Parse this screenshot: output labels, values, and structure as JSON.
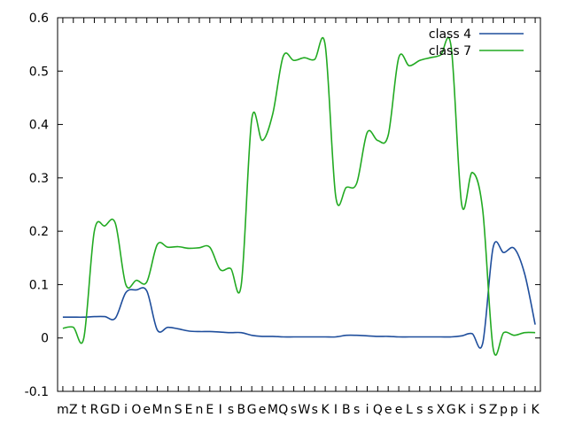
{
  "chart_data": {
    "type": "line",
    "title": "",
    "xlabel": "",
    "ylabel": "",
    "ylim": [
      -0.1,
      0.6
    ],
    "yticks": [
      "-0.1",
      "0",
      "0.1",
      "0.2",
      "0.3",
      "0.4",
      "0.5",
      "0.6"
    ],
    "yticks_values": [
      -0.1,
      0,
      0.1,
      0.2,
      0.3,
      0.4,
      0.5,
      0.6
    ],
    "grid": false,
    "legend_position": "top-right",
    "categories": [
      "m",
      "Z",
      "t",
      "R",
      "G",
      "D",
      "i",
      "O",
      "e",
      "M",
      "n",
      "S",
      "E",
      "n",
      "E",
      "I",
      "s",
      "B",
      "G",
      "e",
      "M",
      "Q",
      "s",
      "W",
      "s",
      "K",
      "I",
      "B",
      "s",
      "i",
      "Q",
      "e",
      "e",
      "L",
      "s",
      "s",
      "X",
      "G",
      "K",
      "i",
      "S",
      "Z",
      "p",
      "p",
      "i",
      "K"
    ],
    "series": [
      {
        "name": "class 4",
        "color": "#1f4e9c",
        "values": [
          0.039,
          0.039,
          0.039,
          0.04,
          0.04,
          0.037,
          0.085,
          0.09,
          0.088,
          0.015,
          0.02,
          0.017,
          0.013,
          0.012,
          0.012,
          0.011,
          0.01,
          0.01,
          0.005,
          0.003,
          0.003,
          0.002,
          0.002,
          0.002,
          0.002,
          0.002,
          0.002,
          0.005,
          0.005,
          0.004,
          0.003,
          0.003,
          0.002,
          0.002,
          0.002,
          0.002,
          0.002,
          0.002,
          0.004,
          0.008,
          -0.01,
          0.17,
          0.16,
          0.168,
          0.12,
          0.025
        ]
      },
      {
        "name": "class 7",
        "color": "#22aa22",
        "values": [
          0.018,
          0.02,
          0.0,
          0.2,
          0.21,
          0.215,
          0.1,
          0.108,
          0.105,
          0.175,
          0.17,
          0.171,
          0.168,
          0.169,
          0.17,
          0.128,
          0.13,
          0.1,
          0.41,
          0.37,
          0.42,
          0.528,
          0.52,
          0.525,
          0.522,
          0.548,
          0.265,
          0.282,
          0.29,
          0.385,
          0.37,
          0.38,
          0.525,
          0.51,
          0.52,
          0.525,
          0.53,
          0.545,
          0.25,
          0.31,
          0.24,
          -0.02,
          0.01,
          0.005,
          0.01,
          0.01
        ]
      }
    ]
  }
}
